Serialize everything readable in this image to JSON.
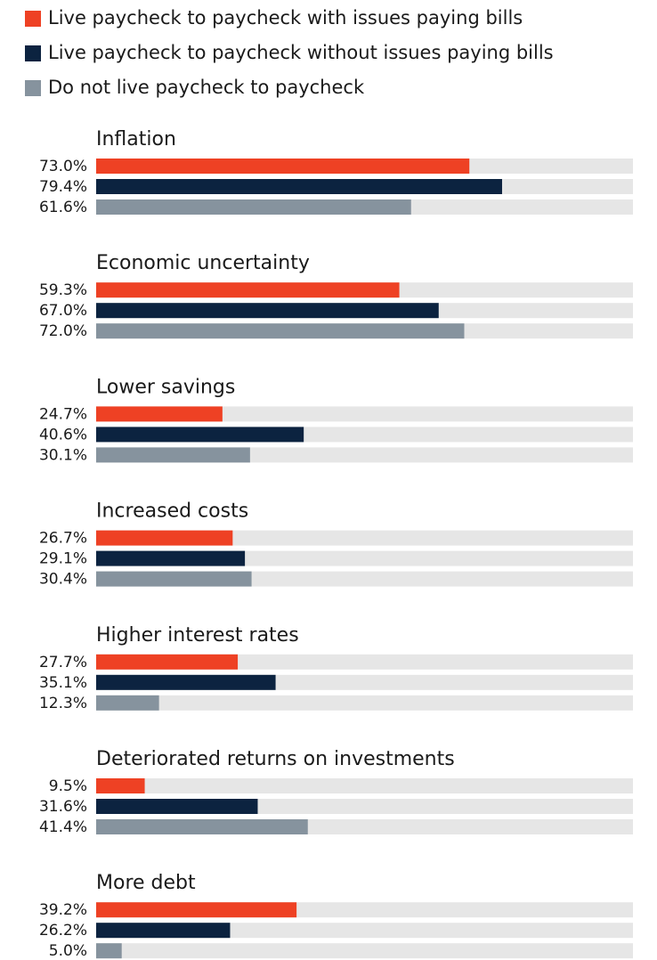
{
  "chart_data": {
    "type": "bar",
    "orientation": "horizontal",
    "categories": [
      "Inflation",
      "Economic uncertainty",
      "Lower savings",
      "Increased costs",
      "Higher interest rates",
      "Deteriorated returns on investments",
      "More debt"
    ],
    "xlim": [
      0,
      105
    ],
    "series": [
      {
        "name": "Live paycheck to paycheck with issues paying bills",
        "color": "#ee4124",
        "values": [
          73.0,
          59.3,
          24.7,
          26.7,
          27.7,
          9.5,
          39.2
        ],
        "value_labels": [
          "73.0%",
          "59.3%",
          "24.7%",
          "26.7%",
          "27.7%",
          "9.5%",
          "39.2%"
        ]
      },
      {
        "name": "Live paycheck to paycheck without issues paying bills",
        "color": "#0c2340",
        "values": [
          79.4,
          67.0,
          40.6,
          29.1,
          35.1,
          31.6,
          26.2
        ],
        "value_labels": [
          "79.4%",
          "67.0%",
          "40.6%",
          "29.1%",
          "35.1%",
          "31.6%",
          "26.2%"
        ]
      },
      {
        "name": "Do not live paycheck to paycheck",
        "color": "#86939e",
        "values": [
          61.6,
          72.0,
          30.1,
          30.4,
          12.3,
          41.4,
          5.0
        ],
        "value_labels": [
          "61.6%",
          "72.0%",
          "30.1%",
          "30.4%",
          "12.3%",
          "41.4%",
          "5.0%"
        ]
      }
    ]
  }
}
